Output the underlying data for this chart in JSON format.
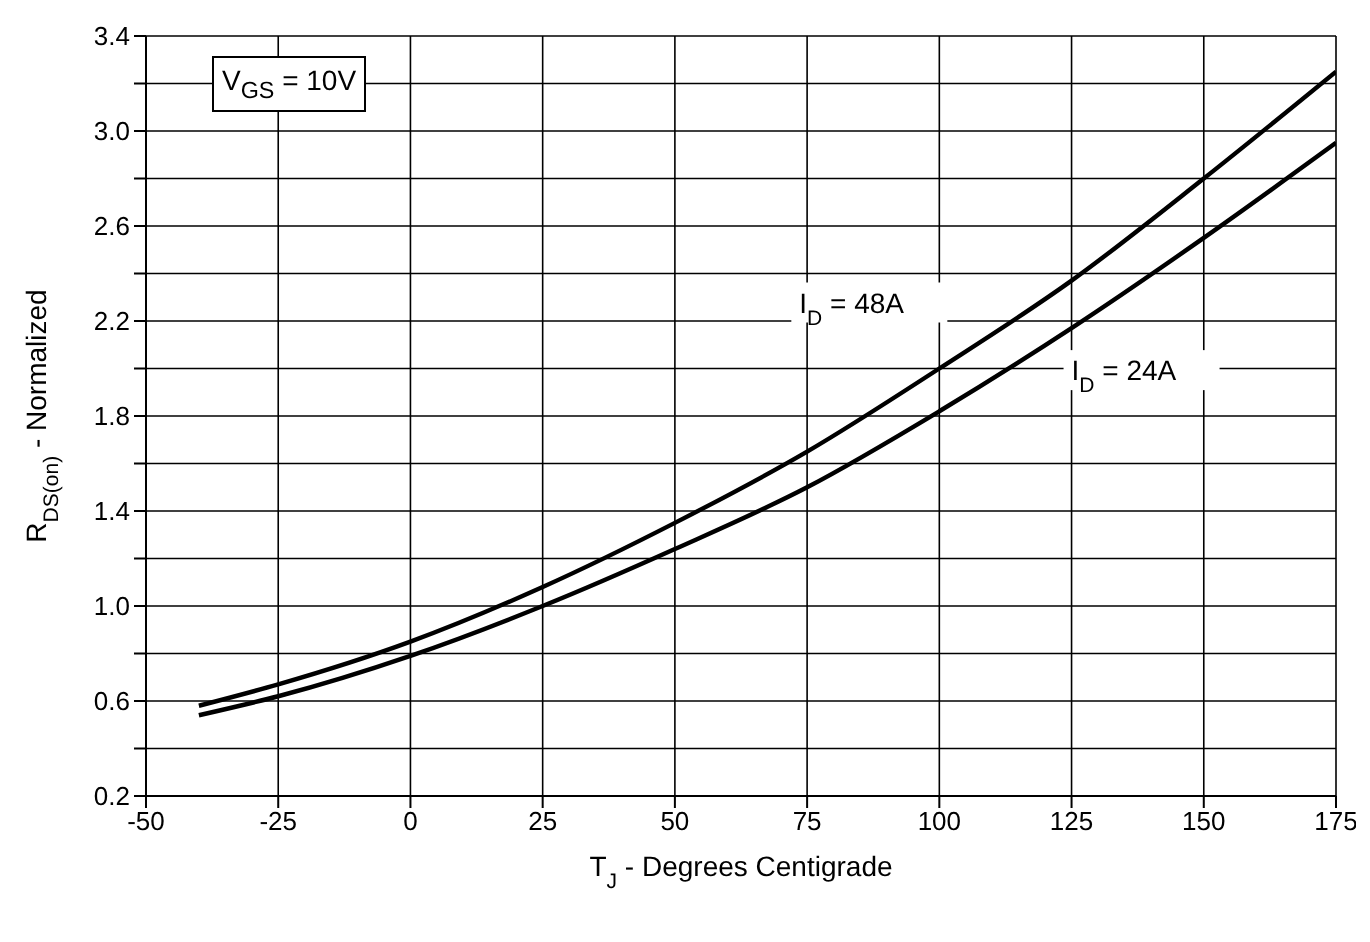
{
  "chart_data": {
    "type": "line",
    "xlabel": "T$_{J}$ - Degrees Centigrade",
    "ylabel": "R$_{DS(on)}$ - Normalized",
    "annotations": [
      "V$_{GS}$ = 10V"
    ],
    "x": [
      -40,
      -25,
      0,
      25,
      50,
      75,
      100,
      125,
      150,
      175
    ],
    "series": [
      {
        "name": "I$_{D}$ = 48A",
        "color": "#000000",
        "values": [
          0.58,
          0.67,
          0.85,
          1.08,
          1.35,
          1.65,
          2.0,
          2.37,
          2.8,
          3.25
        ]
      },
      {
        "name": "I$_{D}$ = 24A",
        "color": "#000000",
        "values": [
          0.54,
          0.62,
          0.79,
          1.0,
          1.24,
          1.5,
          1.82,
          2.17,
          2.55,
          2.95
        ]
      }
    ],
    "xlim": [
      -50,
      175
    ],
    "xticks": [
      -50,
      -25,
      0,
      25,
      50,
      75,
      100,
      125,
      150,
      175
    ],
    "ylim": [
      0.2,
      3.4
    ],
    "yticks": [
      0.2,
      {
        "value": 0.4,
        "label": null
      },
      0.6,
      {
        "value": 0.8,
        "label": null
      },
      {
        "value": 1,
        "label": "1.0"
      },
      {
        "value": 1.2,
        "label": null
      },
      1.4,
      {
        "value": 1.6,
        "label": null
      },
      1.8,
      {
        "value": 2.0,
        "label": null
      },
      2.2,
      {
        "value": 2.4,
        "label": null
      },
      2.6,
      {
        "value": 2.8,
        "label": null
      },
      {
        "value": 3,
        "label": "3.0"
      },
      {
        "value": 3.2,
        "label": null
      },
      3.4
    ],
    "grid": true,
    "marker": "none",
    "line_style": "solid"
  }
}
